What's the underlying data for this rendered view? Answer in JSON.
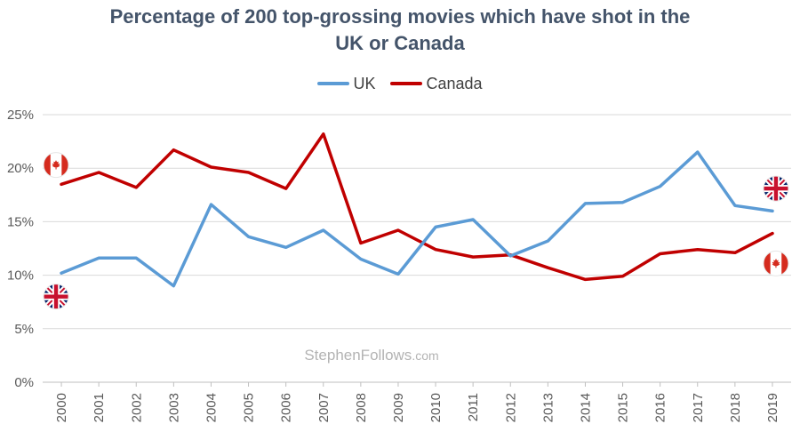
{
  "title_lines": [
    "Percentage of 200 top-grossing movies which have shot in the",
    "UK or Canada"
  ],
  "watermark": {
    "main": "StephenFollows",
    "suffix": ".com"
  },
  "colors": {
    "uk": "#5b9bd5",
    "canada": "#c00000",
    "grid": "#d9d9d9",
    "axis_text": "#595959"
  },
  "chart_data": {
    "type": "line",
    "title": "Percentage of 200 top-grossing movies which have shot in the UK or Canada",
    "xlabel": "",
    "ylabel": "",
    "ylim": [
      0,
      25
    ],
    "y_ticks": [
      "0%",
      "5%",
      "10%",
      "15%",
      "20%",
      "25%"
    ],
    "categories": [
      "2000",
      "2001",
      "2002",
      "2003",
      "2004",
      "2005",
      "2006",
      "2007",
      "2008",
      "2009",
      "2010",
      "2011",
      "2012",
      "2013",
      "2014",
      "2015",
      "2016",
      "2017",
      "2018",
      "2019"
    ],
    "series": [
      {
        "name": "UK",
        "key": "uk",
        "values": [
          10.2,
          11.6,
          11.6,
          9.0,
          16.6,
          13.6,
          12.6,
          14.2,
          11.5,
          10.1,
          14.5,
          15.2,
          11.8,
          13.2,
          16.7,
          16.8,
          18.3,
          21.5,
          16.5,
          16.0
        ]
      },
      {
        "name": "Canada",
        "key": "canada",
        "values": [
          18.5,
          19.6,
          18.2,
          21.7,
          20.1,
          19.6,
          18.1,
          23.2,
          13.0,
          14.2,
          12.4,
          11.7,
          11.9,
          10.7,
          9.6,
          9.9,
          12.0,
          12.4,
          12.1,
          13.9
        ]
      }
    ],
    "legend_position": "top-center",
    "flag_markers": [
      {
        "flag": "canada",
        "side": "start",
        "value": 20.3
      },
      {
        "flag": "uk",
        "side": "start",
        "value": 8.0
      },
      {
        "flag": "uk",
        "side": "end",
        "value": 18.1
      },
      {
        "flag": "canada",
        "side": "end",
        "value": 11.1
      }
    ]
  }
}
